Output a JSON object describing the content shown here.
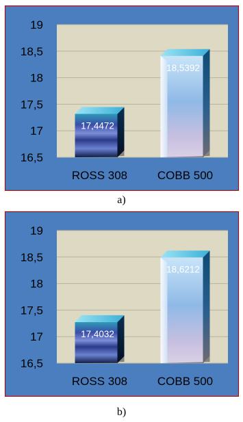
{
  "chart_data": [
    {
      "type": "bar",
      "categories": [
        "ROSS 308",
        "COBB 500"
      ],
      "values": [
        17.4472,
        18.5392
      ],
      "data_labels": [
        "17,4472",
        "18,5392"
      ],
      "yticks": [
        "19",
        "18,5",
        "18",
        "17,5",
        "17",
        "16,5"
      ],
      "ylim": [
        16.5,
        19
      ],
      "grid": true,
      "caption": "a)",
      "colors": {
        "background": "#4a7ebf",
        "plot_area": "#ddd9c3",
        "gridline": "#b5b29e",
        "border": "#c00000",
        "text": "#000000",
        "label_text": "#ffffff"
      }
    },
    {
      "type": "bar",
      "categories": [
        "ROSS 308",
        "COBB 500"
      ],
      "values": [
        17.4032,
        18.6212
      ],
      "data_labels": [
        "17,4032",
        "18,6212"
      ],
      "yticks": [
        "19",
        "18,5",
        "18",
        "17,5",
        "17",
        "16,5"
      ],
      "ylim": [
        16.5,
        19
      ],
      "grid": true,
      "caption": "b)",
      "colors": {
        "background": "#4a7ebf",
        "plot_area": "#ddd9c3",
        "gridline": "#b5b29e",
        "border": "#c00000",
        "text": "#000000",
        "label_text": "#ffffff"
      }
    }
  ]
}
